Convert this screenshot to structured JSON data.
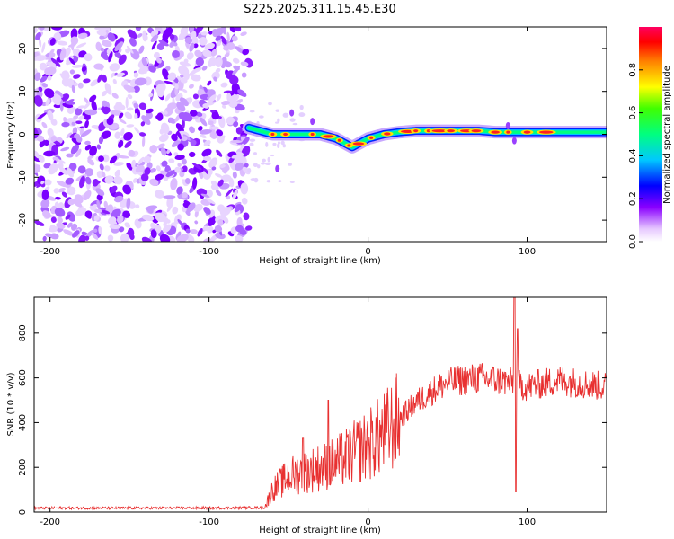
{
  "title": "S225.2025.311.15.45.E30",
  "colors": {
    "line": "#e83030",
    "background": "#ffffff",
    "axis": "#000000"
  },
  "chart_data": [
    {
      "type": "heatmap",
      "xlabel": "Height of straight line (km)",
      "ylabel": "Frequency (Hz)",
      "xlim": [
        -210,
        150
      ],
      "ylim": [
        -25,
        25
      ],
      "xticks": [
        -200,
        -100,
        0,
        100
      ],
      "yticks": [
        -20,
        -10,
        0,
        10,
        20
      ],
      "noise_region_x": [
        -210,
        -75
      ],
      "ridge": {
        "x": [
          -75,
          -70,
          -60,
          -50,
          -40,
          -30,
          -20,
          -15,
          -10,
          -5,
          0,
          10,
          20,
          30,
          40,
          50,
          60,
          70,
          80,
          90,
          100,
          110,
          120,
          130,
          140,
          150
        ],
        "freq": [
          1.5,
          1.0,
          0.0,
          0.0,
          0.0,
          0.0,
          -1.0,
          -2.0,
          -3.0,
          -2.0,
          -1.0,
          0.0,
          0.5,
          0.8,
          0.8,
          0.8,
          0.8,
          0.8,
          0.5,
          0.5,
          0.5,
          0.5,
          0.5,
          0.5,
          0.5,
          0.5
        ]
      },
      "colorbar": {
        "label": "Normalized spectral amplitude",
        "ticks": [
          "0.0",
          "0.2",
          "0.4",
          "0.6",
          "0.8"
        ],
        "range": [
          0,
          1
        ]
      }
    },
    {
      "type": "line",
      "xlabel": "Height of straight line (km)",
      "ylabel": "SNR (10 * v/v)",
      "xlim": [
        -210,
        150
      ],
      "ylim": [
        0,
        960
      ],
      "xticks": [
        -200,
        -100,
        0,
        100
      ],
      "yticks": [
        0,
        200,
        400,
        600,
        800
      ],
      "envelope": {
        "x": [
          -210,
          -150,
          -100,
          -65,
          -60,
          -50,
          -40,
          -30,
          -20,
          -10,
          0,
          10,
          20,
          30,
          40,
          50,
          60,
          70,
          80,
          90,
          100,
          110,
          120,
          130,
          140,
          150
        ],
        "y": [
          18,
          18,
          18,
          20,
          100,
          160,
          180,
          200,
          220,
          260,
          300,
          350,
          420,
          490,
          540,
          580,
          590,
          600,
          590,
          580,
          560,
          575,
          590,
          580,
          570,
          560
        ]
      },
      "spikes": [
        {
          "x": -25,
          "y": 500
        },
        {
          "x": -41,
          "y": 330
        },
        {
          "x": 92,
          "y": 960
        },
        {
          "x": 94,
          "y": 820
        },
        {
          "x": 93,
          "y": 90
        }
      ]
    }
  ]
}
